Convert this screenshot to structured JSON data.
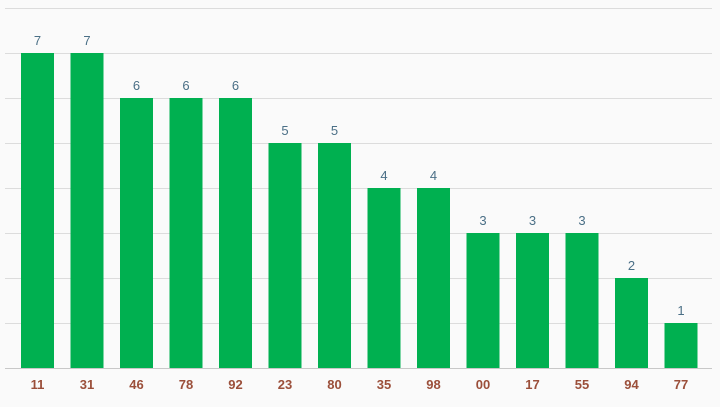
{
  "chart_data": {
    "type": "bar",
    "categories": [
      "11",
      "31",
      "46",
      "78",
      "92",
      "23",
      "80",
      "35",
      "98",
      "00",
      "17",
      "55",
      "94",
      "77"
    ],
    "values": [
      7,
      7,
      6,
      6,
      6,
      5,
      5,
      4,
      4,
      3,
      3,
      3,
      2,
      1
    ],
    "title": "",
    "xlabel": "",
    "ylabel": "",
    "ylim": [
      0,
      8
    ],
    "grid": true,
    "legend": "none",
    "data_labels": true,
    "colors": {
      "bar": "#00b050",
      "value_label": "#4a6f86",
      "category_label": "#9b4f3a",
      "grid": "#dcdcdc",
      "background": "#fafafa"
    }
  }
}
